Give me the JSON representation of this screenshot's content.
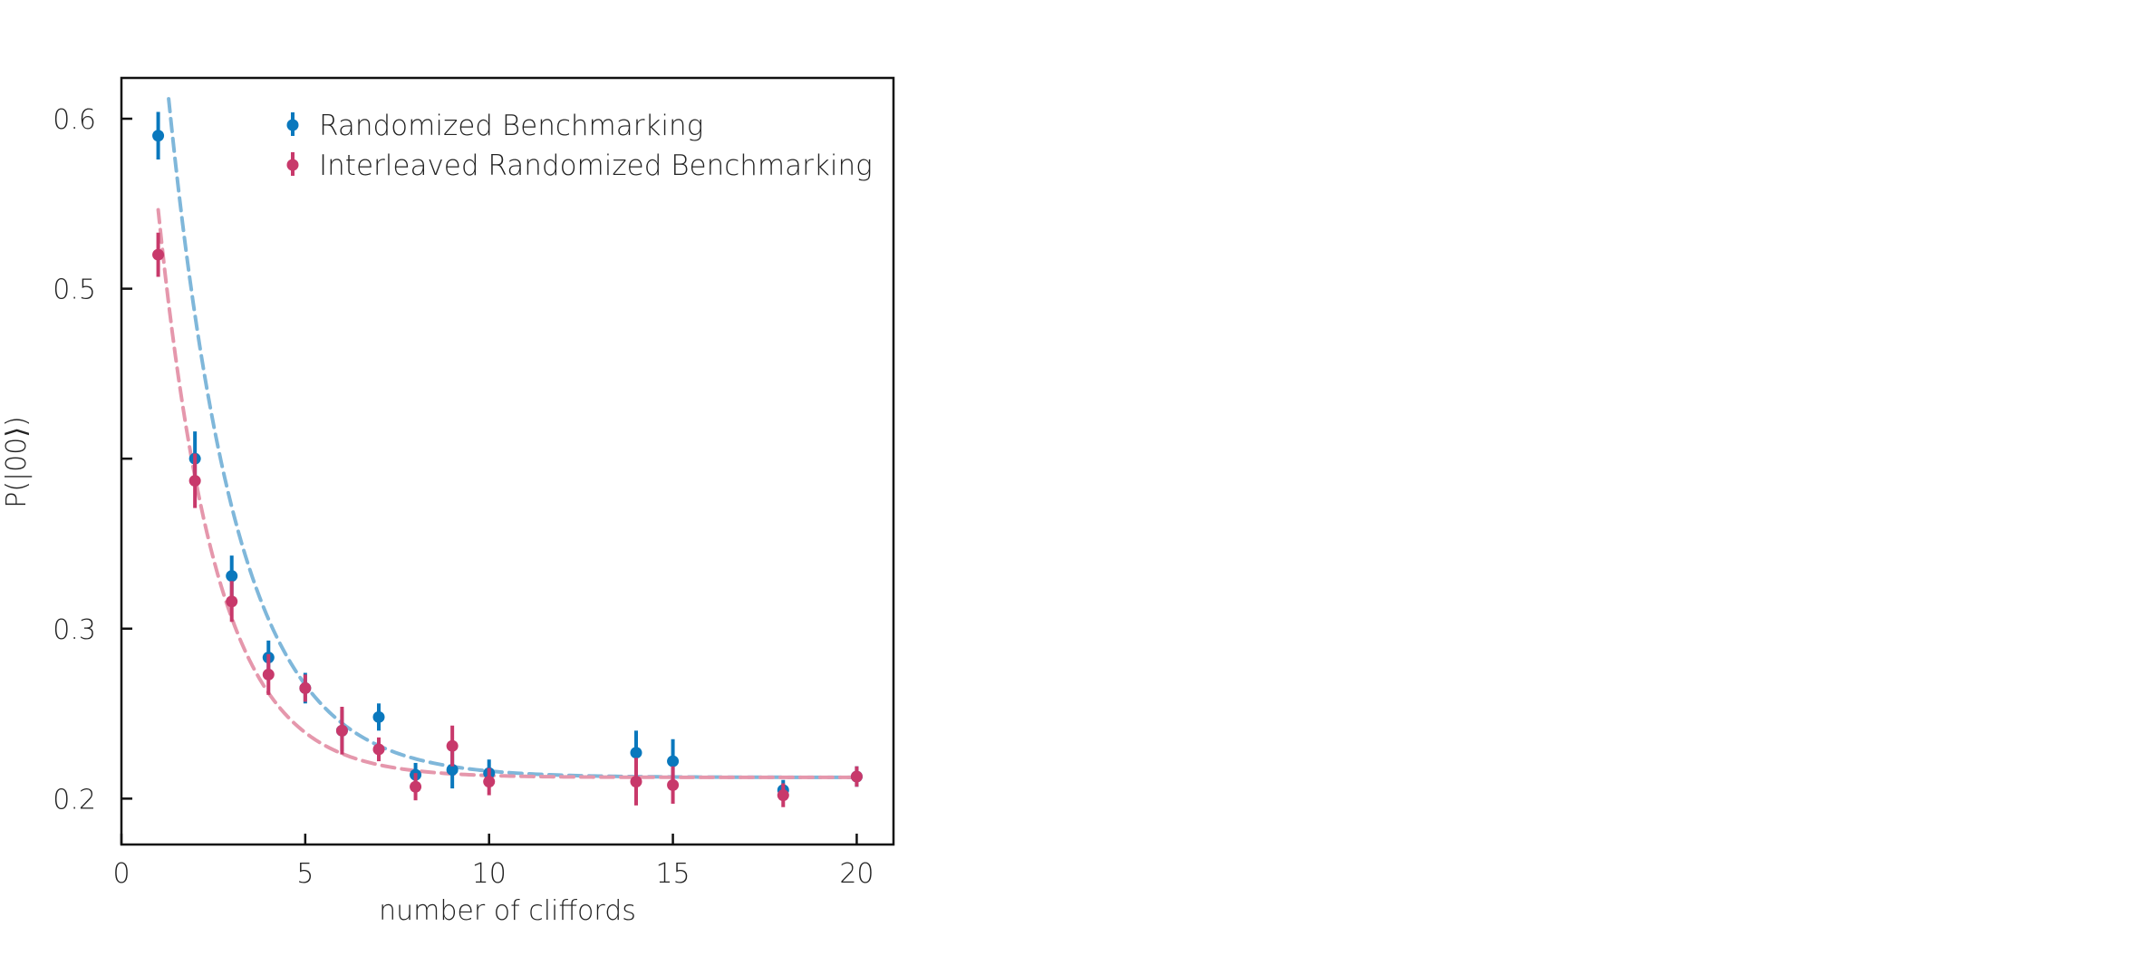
{
  "chart_data": {
    "type": "scatter",
    "xlabel": "number of cliffords",
    "ylabel": "P(|00⟩)",
    "xlim": [
      0,
      21
    ],
    "ylim": [
      0.173,
      0.624
    ],
    "x_ticks": [
      0,
      5,
      10,
      15,
      20
    ],
    "x_tick_labels": [
      "0",
      "5",
      "10",
      "15",
      "20"
    ],
    "y_ticks": [
      0.2,
      0.3,
      0.4,
      0.5,
      0.6
    ],
    "y_tick_labels": [
      "0.2",
      "0.3",
      "",
      "0.5",
      "0.6"
    ],
    "grid": false,
    "legend_position": "top-right",
    "series": [
      {
        "name": "Randomized Benchmarking",
        "color": "#0a78bd",
        "fit_color": "#7fb7da",
        "x": [
          1,
          2,
          3,
          4,
          5,
          6,
          7,
          8,
          9,
          10,
          14,
          15,
          18,
          20
        ],
        "y": [
          0.59,
          0.4,
          0.331,
          0.283,
          0.265,
          0.24,
          0.248,
          0.214,
          0.217,
          0.215,
          0.227,
          0.222,
          0.205,
          0.213
        ],
        "err": [
          0.014,
          0.016,
          0.012,
          0.01,
          0.009,
          0.012,
          0.008,
          0.007,
          0.011,
          0.008,
          0.013,
          0.013,
          0.006,
          0.006
        ],
        "fit": {
          "A": 0.795,
          "p": 0.585,
          "B": 0.2125
        }
      },
      {
        "name": "Interleaved Randomized Benchmarking",
        "color": "#c8396b",
        "fit_color": "#e597ac",
        "x": [
          1,
          2,
          3,
          4,
          5,
          6,
          7,
          8,
          9,
          10,
          14,
          15,
          18,
          20
        ],
        "y": [
          0.52,
          0.387,
          0.316,
          0.273,
          0.265,
          0.24,
          0.229,
          0.207,
          0.231,
          0.21,
          0.21,
          0.208,
          0.202,
          0.213
        ],
        "err": [
          0.013,
          0.016,
          0.012,
          0.012,
          0.008,
          0.014,
          0.007,
          0.008,
          0.012,
          0.008,
          0.014,
          0.011,
          0.007,
          0.006
        ],
        "fit": {
          "A": 0.63,
          "p": 0.53,
          "B": 0.2125
        }
      }
    ]
  }
}
